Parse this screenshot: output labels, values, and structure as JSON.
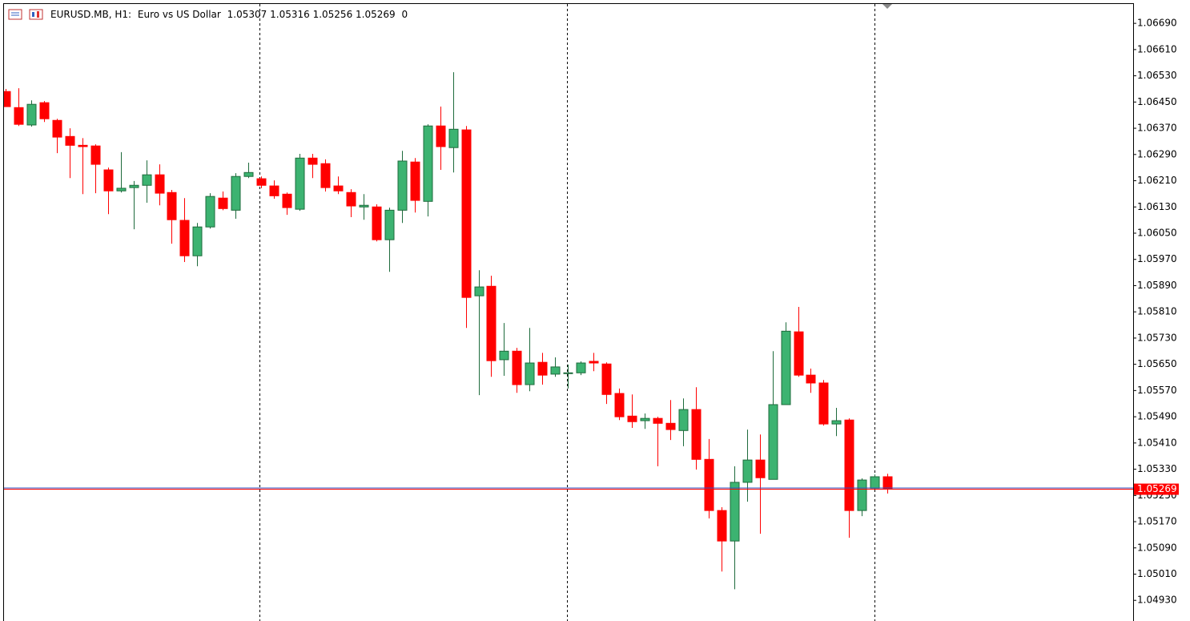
{
  "chart_data": {
    "type": "candlestick",
    "symbol": "EURUSD.MB, H1:",
    "description": "Euro vs US Dollar",
    "header_values": [
      "1.05307",
      "1.05316",
      "1.05256",
      "1.05269",
      "0"
    ],
    "open": [
      1.06482,
      1.06433,
      1.0638,
      1.06448,
      1.06394,
      1.06345,
      1.06318,
      1.06316,
      1.06243,
      1.06179,
      1.06189,
      1.06196,
      1.06228,
      1.06174,
      1.06089,
      1.05981,
      1.06069,
      1.06157,
      1.0612,
      1.06223,
      1.06216,
      1.06194,
      1.06169,
      1.06123,
      1.06279,
      1.06262,
      1.06194,
      1.06174,
      1.0613,
      1.0613,
      1.0603,
      1.0612,
      1.06267,
      1.06147,
      1.06377,
      1.06311,
      1.06365,
      1.05859,
      1.05888,
      1.05664,
      1.0569,
      1.05588,
      1.05656,
      1.0562,
      1.05624,
      1.05624,
      1.05659,
      1.05651,
      1.05561,
      1.05492,
      1.05478,
      1.05485,
      1.0547,
      1.05448,
      1.05512,
      1.0536,
      1.05204,
      1.05111,
      1.0529,
      1.05358,
      1.05299,
      1.05527,
      1.05749,
      1.05617,
      1.05593,
      1.05468,
      1.0548,
      1.05204,
      1.05272,
      1.05307
    ],
    "high": [
      1.0649,
      1.06492,
      1.06455,
      1.06453,
      1.06399,
      1.0637,
      1.0634,
      1.06321,
      1.0625,
      1.06297,
      1.06209,
      1.06272,
      1.0626,
      1.06182,
      1.06157,
      1.06081,
      1.06172,
      1.06177,
      1.06233,
      1.06265,
      1.06223,
      1.06211,
      1.06174,
      1.06292,
      1.06292,
      1.06275,
      1.06223,
      1.06184,
      1.06169,
      1.06138,
      1.06128,
      1.06301,
      1.06279,
      1.06382,
      1.06436,
      1.06541,
      1.06377,
      1.05937,
      1.0592,
      1.05776,
      1.057,
      1.05761,
      1.05685,
      1.05671,
      1.05649,
      1.05659,
      1.05685,
      1.05656,
      1.05576,
      1.05558,
      1.055,
      1.0549,
      1.05541,
      1.05546,
      1.0558,
      1.05422,
      1.05214,
      1.05339,
      1.05451,
      1.05436,
      1.0569,
      1.05778,
      1.05825,
      1.05637,
      1.05602,
      1.05517,
      1.05485,
      1.05302,
      1.05314,
      1.05316
    ],
    "low": [
      1.06436,
      1.06377,
      1.06375,
      1.06389,
      1.06294,
      1.06218,
      1.06169,
      1.06172,
      1.06108,
      1.06174,
      1.06062,
      1.06143,
      1.06135,
      1.06018,
      1.05962,
      1.05949,
      1.06064,
      1.0612,
      1.06094,
      1.06218,
      1.06187,
      1.06155,
      1.06106,
      1.06118,
      1.06218,
      1.06177,
      1.06169,
      1.06099,
      1.06091,
      1.06025,
      1.05932,
      1.06081,
      1.06113,
      1.06101,
      1.06243,
      1.06235,
      1.05761,
      1.05556,
      1.05612,
      1.05615,
      1.05563,
      1.05568,
      1.05588,
      1.05612,
      1.05576,
      1.05617,
      1.05629,
      1.05529,
      1.0548,
      1.05456,
      1.05453,
      1.05339,
      1.05419,
      1.054,
      1.05329,
      1.0518,
      1.05018,
      1.04964,
      1.05231,
      1.05133,
      1.05299,
      1.05527,
      1.05612,
      1.05563,
      1.05463,
      1.05431,
      1.05121,
      1.05187,
      1.0527,
      1.05256
    ],
    "close": [
      1.06436,
      1.06382,
      1.06443,
      1.06399,
      1.06343,
      1.06318,
      1.06314,
      1.0626,
      1.06179,
      1.06187,
      1.06196,
      1.06228,
      1.06172,
      1.06091,
      1.05981,
      1.06069,
      1.06162,
      1.06125,
      1.06223,
      1.06235,
      1.06196,
      1.06164,
      1.06128,
      1.06279,
      1.0626,
      1.06189,
      1.06179,
      1.06133,
      1.06135,
      1.0603,
      1.0612,
      1.0627,
      1.0615,
      1.06377,
      1.06314,
      1.06367,
      1.05854,
      1.05886,
      1.05661,
      1.0569,
      1.05588,
      1.05654,
      1.05617,
      1.05642,
      1.05624,
      1.05654,
      1.05654,
      1.05558,
      1.0549,
      1.05475,
      1.05485,
      1.0547,
      1.05451,
      1.05512,
      1.0536,
      1.05204,
      1.05111,
      1.0529,
      1.05358,
      1.05304,
      1.05527,
      1.05751,
      1.05617,
      1.05593,
      1.05468,
      1.05478,
      1.05204,
      1.05297,
      1.05307,
      1.05269
    ],
    "color_up": "#3cb371",
    "color_down": "#ff0000",
    "last_price": {
      "value": 1.05269,
      "label": "1.05269"
    },
    "ylim": [
      1.04867,
      1.06749
    ],
    "yticks": [
      {
        "value": 1.0669,
        "label": "1.06690"
      },
      {
        "value": 1.0661,
        "label": "1.06610"
      },
      {
        "value": 1.0653,
        "label": "1.06530"
      },
      {
        "value": 1.0645,
        "label": "1.06450"
      },
      {
        "value": 1.0637,
        "label": "1.06370"
      },
      {
        "value": 1.0629,
        "label": "1.06290"
      },
      {
        "value": 1.0621,
        "label": "1.06210"
      },
      {
        "value": 1.0613,
        "label": "1.06130"
      },
      {
        "value": 1.0605,
        "label": "1.06050"
      },
      {
        "value": 1.0597,
        "label": "1.05970"
      },
      {
        "value": 1.0589,
        "label": "1.05890"
      },
      {
        "value": 1.0581,
        "label": "1.05810"
      },
      {
        "value": 1.0573,
        "label": "1.05730"
      },
      {
        "value": 1.0565,
        "label": "1.05650"
      },
      {
        "value": 1.0557,
        "label": "1.05570"
      },
      {
        "value": 1.0549,
        "label": "1.05490"
      },
      {
        "value": 1.0541,
        "label": "1.05410"
      },
      {
        "value": 1.0533,
        "label": "1.05330"
      },
      {
        "value": 1.0525,
        "label": "1.05250"
      },
      {
        "value": 1.0517,
        "label": "1.05170"
      },
      {
        "value": 1.0509,
        "label": "1.05090"
      },
      {
        "value": 1.0501,
        "label": "1.05010"
      },
      {
        "value": 1.0493,
        "label": "1.04930"
      }
    ]
  }
}
